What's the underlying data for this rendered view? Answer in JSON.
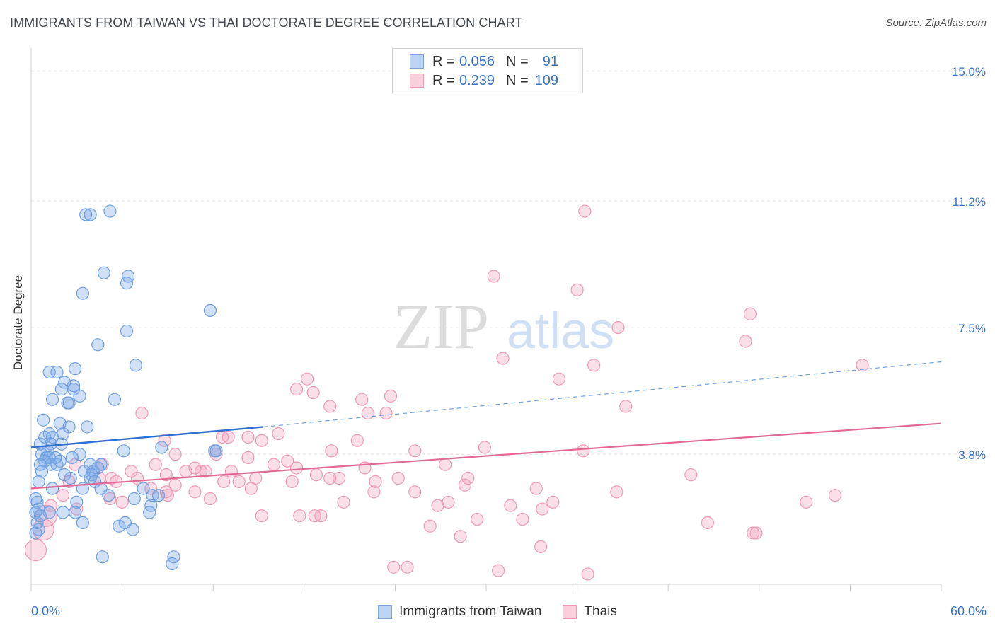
{
  "title": "IMMIGRANTS FROM TAIWAN VS THAI DOCTORATE DEGREE CORRELATION CHART",
  "source": "Source: ZipAtlas.com",
  "watermark": {
    "zip": "ZIP",
    "atlas": "atlas"
  },
  "legend": {
    "series1": {
      "r_label": "R =",
      "r_value": "0.056",
      "n_label": "N =",
      "n_value": "91",
      "color": "#a8c8f0"
    },
    "series2": {
      "r_label": "R =",
      "r_value": "0.239",
      "n_label": "N =",
      "n_value": "109",
      "color": "#f5b8cb"
    }
  },
  "bottom_legend": {
    "series1": "Immigrants from Taiwan",
    "series2": "Thais"
  },
  "chart_data": {
    "type": "scatter",
    "title": "IMMIGRANTS FROM TAIWAN VS THAI DOCTORATE DEGREE CORRELATION CHART",
    "xlabel": "",
    "ylabel": "Doctorate Degree",
    "xlim": [
      0,
      60
    ],
    "ylim": [
      0,
      15.5
    ],
    "x_tick_labels": [
      "0.0%",
      "60.0%"
    ],
    "y_ticks": [
      3.8,
      7.5,
      11.2,
      15.0
    ],
    "y_tick_labels": [
      "3.8%",
      "7.5%",
      "11.2%",
      "15.0%"
    ],
    "colors": {
      "series1_fill": "rgba(120,165,230,0.35)",
      "series1_stroke": "#6f9fe0",
      "series1_line": "#2f6fd0",
      "series2_fill": "rgba(240,150,180,0.30)",
      "series2_stroke": "#ee9ab5",
      "series2_line": "#e06a95",
      "grid": "#dddddd",
      "tick_label": "#3b73c4"
    },
    "series": [
      {
        "name": "Immigrants from Taiwan",
        "trend": {
          "x0": 0,
          "y0": 4.0,
          "x1": 15.3,
          "y1": 4.6,
          "dash_to_x": 60,
          "dash_to_y": 6.5
        },
        "points": [
          [
            3.6,
            10.8
          ],
          [
            3.9,
            10.8
          ],
          [
            5.2,
            10.9
          ],
          [
            4.8,
            9.1
          ],
          [
            6.4,
            9.0
          ],
          [
            6.3,
            8.8
          ],
          [
            3.4,
            8.5
          ],
          [
            11.8,
            8.0
          ],
          [
            6.3,
            7.4
          ],
          [
            4.4,
            7.0
          ],
          [
            6.9,
            6.4
          ],
          [
            1.2,
            6.2
          ],
          [
            1.7,
            6.2
          ],
          [
            2.9,
            6.3
          ],
          [
            2.2,
            5.9
          ],
          [
            2.8,
            5.8
          ],
          [
            2.0,
            5.7
          ],
          [
            2.8,
            5.7
          ],
          [
            3.2,
            5.5
          ],
          [
            1.4,
            5.4
          ],
          [
            2.4,
            5.3
          ],
          [
            2.5,
            5.3
          ],
          [
            5.5,
            5.4
          ],
          [
            0.8,
            4.8
          ],
          [
            1.9,
            4.7
          ],
          [
            3.7,
            4.6
          ],
          [
            2.5,
            4.6
          ],
          [
            1.2,
            4.4
          ],
          [
            2.1,
            4.4
          ],
          [
            0.9,
            4.3
          ],
          [
            1.4,
            4.3
          ],
          [
            1.3,
            4.1
          ],
          [
            0.6,
            4.1
          ],
          [
            2.0,
            4.1
          ],
          [
            1.1,
            3.9
          ],
          [
            6.1,
            3.9
          ],
          [
            12.1,
            3.9
          ],
          [
            12.2,
            3.9
          ],
          [
            8.6,
            4.0
          ],
          [
            0.7,
            3.8
          ],
          [
            1.0,
            3.7
          ],
          [
            1.2,
            3.7
          ],
          [
            2.7,
            3.7
          ],
          [
            3.2,
            3.8
          ],
          [
            1.6,
            3.7
          ],
          [
            0.9,
            3.6
          ],
          [
            1.9,
            3.6
          ],
          [
            0.6,
            3.5
          ],
          [
            1.3,
            3.5
          ],
          [
            1.7,
            3.5
          ],
          [
            3.9,
            3.5
          ],
          [
            4.6,
            3.5
          ],
          [
            4.4,
            3.4
          ],
          [
            0.7,
            3.3
          ],
          [
            2.2,
            3.2
          ],
          [
            3.5,
            3.3
          ],
          [
            4.0,
            3.2
          ],
          [
            4.1,
            3.3
          ],
          [
            2.6,
            3.1
          ],
          [
            3.9,
            3.1
          ],
          [
            4.2,
            3.0
          ],
          [
            0.5,
            3.0
          ],
          [
            3.4,
            2.8
          ],
          [
            4.6,
            2.8
          ],
          [
            1.4,
            2.8
          ],
          [
            7.4,
            2.8
          ],
          [
            5.1,
            2.6
          ],
          [
            6.8,
            2.5
          ],
          [
            8.0,
            2.6
          ],
          [
            8.4,
            2.6
          ],
          [
            0.3,
            2.5
          ],
          [
            0.4,
            2.4
          ],
          [
            3.0,
            2.4
          ],
          [
            7.9,
            2.3
          ],
          [
            7.8,
            2.1
          ],
          [
            0.5,
            2.2
          ],
          [
            0.3,
            2.1
          ],
          [
            1.2,
            2.1
          ],
          [
            2.1,
            2.1
          ],
          [
            2.9,
            2.1
          ],
          [
            3.4,
            1.8
          ],
          [
            6.2,
            1.8
          ],
          [
            5.8,
            1.7
          ],
          [
            6.7,
            1.6
          ],
          [
            0.5,
            1.6
          ],
          [
            0.3,
            1.5
          ],
          [
            4.7,
            0.8
          ],
          [
            9.4,
            0.8
          ],
          [
            9.3,
            0.6
          ],
          [
            0.4,
            1.8
          ],
          [
            0.6,
            2.0
          ]
        ]
      },
      {
        "name": "Thais",
        "trend": {
          "x0": 0,
          "y0": 2.8,
          "x1": 60,
          "y1": 4.7
        },
        "points": [
          [
            36.5,
            10.9
          ],
          [
            30.5,
            9.0
          ],
          [
            36.0,
            8.6
          ],
          [
            47.4,
            7.9
          ],
          [
            38.7,
            7.5
          ],
          [
            47.1,
            7.1
          ],
          [
            31.1,
            6.6
          ],
          [
            37.1,
            6.4
          ],
          [
            54.8,
            6.4
          ],
          [
            34.8,
            6.0
          ],
          [
            18.2,
            6.0
          ],
          [
            17.5,
            5.7
          ],
          [
            18.6,
            5.6
          ],
          [
            23.7,
            5.5
          ],
          [
            21.8,
            5.4
          ],
          [
            39.2,
            5.2
          ],
          [
            19.7,
            5.2
          ],
          [
            22.2,
            5.0
          ],
          [
            23.4,
            5.0
          ],
          [
            7.3,
            5.0
          ],
          [
            16.3,
            4.4
          ],
          [
            13.0,
            4.3
          ],
          [
            14.3,
            4.3
          ],
          [
            12.6,
            4.3
          ],
          [
            15.2,
            4.2
          ],
          [
            8.8,
            4.2
          ],
          [
            21.5,
            4.2
          ],
          [
            29.9,
            4.0
          ],
          [
            19.8,
            3.9
          ],
          [
            25.3,
            3.9
          ],
          [
            36.4,
            3.9
          ],
          [
            14.3,
            3.7
          ],
          [
            9.5,
            3.8
          ],
          [
            12.2,
            3.8
          ],
          [
            8.2,
            3.5
          ],
          [
            16.0,
            3.5
          ],
          [
            16.9,
            3.6
          ],
          [
            10.8,
            3.4
          ],
          [
            17.5,
            3.4
          ],
          [
            27.3,
            3.5
          ],
          [
            22.0,
            3.4
          ],
          [
            11.2,
            3.3
          ],
          [
            11.5,
            3.3
          ],
          [
            13.2,
            3.3
          ],
          [
            2.9,
            3.5
          ],
          [
            4.7,
            3.5
          ],
          [
            6.6,
            3.3
          ],
          [
            5.3,
            3.1
          ],
          [
            8.9,
            3.2
          ],
          [
            10.2,
            3.3
          ],
          [
            14.8,
            3.1
          ],
          [
            18.8,
            3.2
          ],
          [
            20.3,
            3.1
          ],
          [
            28.8,
            3.1
          ],
          [
            43.5,
            3.2
          ],
          [
            2.5,
            3.0
          ],
          [
            4.5,
            3.1
          ],
          [
            7.0,
            3.1
          ],
          [
            9.5,
            2.9
          ],
          [
            12.7,
            3.0
          ],
          [
            13.7,
            3.0
          ],
          [
            17.2,
            3.0
          ],
          [
            22.7,
            3.0
          ],
          [
            24.2,
            3.1
          ],
          [
            5.6,
            3.0
          ],
          [
            7.9,
            2.8
          ],
          [
            8.9,
            2.7
          ],
          [
            10.8,
            2.7
          ],
          [
            14.5,
            2.8
          ],
          [
            19.7,
            3.1
          ],
          [
            22.6,
            2.7
          ],
          [
            25.3,
            2.7
          ],
          [
            28.6,
            2.9
          ],
          [
            33.3,
            2.8
          ],
          [
            38.6,
            2.7
          ],
          [
            53.0,
            2.6
          ],
          [
            2.1,
            2.6
          ],
          [
            5.2,
            2.5
          ],
          [
            6.0,
            2.4
          ],
          [
            9.0,
            2.6
          ],
          [
            11.8,
            2.5
          ],
          [
            20.6,
            2.4
          ],
          [
            26.8,
            2.3
          ],
          [
            27.5,
            2.4
          ],
          [
            31.6,
            2.3
          ],
          [
            34.4,
            2.4
          ],
          [
            51.1,
            2.4
          ],
          [
            1.3,
            2.3
          ],
          [
            3.0,
            2.2
          ],
          [
            15.2,
            2.0
          ],
          [
            17.7,
            2.0
          ],
          [
            18.7,
            2.0
          ],
          [
            19.1,
            2.0
          ],
          [
            29.4,
            1.9
          ],
          [
            32.4,
            1.9
          ],
          [
            33.7,
            2.2
          ],
          [
            44.6,
            1.8
          ],
          [
            26.3,
            1.7
          ],
          [
            28.3,
            1.4
          ],
          [
            47.6,
            1.5
          ],
          [
            47.8,
            1.5
          ],
          [
            33.6,
            1.1
          ],
          [
            23.9,
            0.5
          ],
          [
            24.8,
            0.5
          ],
          [
            30.8,
            0.4
          ],
          [
            36.7,
            0.3
          ],
          [
            1.0,
            2.0
          ],
          [
            0.8,
            1.6
          ],
          [
            0.3,
            1.0
          ]
        ]
      }
    ]
  }
}
